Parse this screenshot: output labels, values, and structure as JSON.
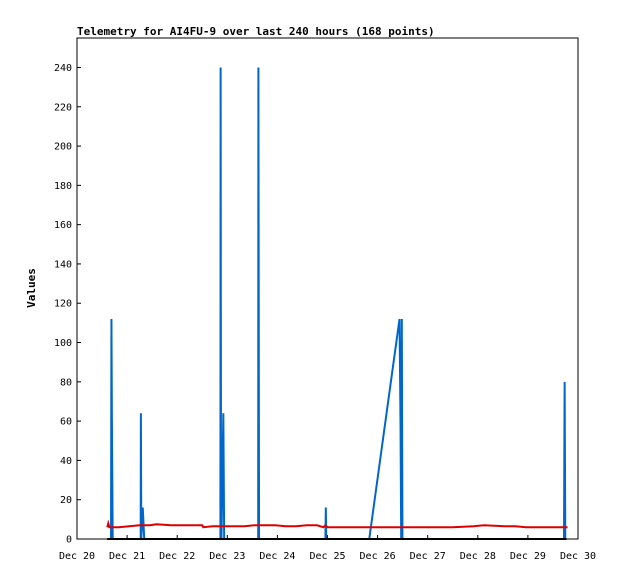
{
  "chart_data": {
    "type": "line",
    "title": "Telemetry for AI4FU-9 over last 240 hours (168 points)",
    "xlabel": "",
    "ylabel": "Values",
    "x_unit": "hours",
    "xlim": [
      0,
      240
    ],
    "ylim": [
      0,
      255
    ],
    "x_tick_labels": [
      "Dec 20",
      "Dec 21",
      "Dec 22",
      "Dec 23",
      "Dec 24",
      "Dec 25",
      "Dec 26",
      "Dec 27",
      "Dec 28",
      "Dec 29",
      "Dec 30"
    ],
    "y_ticks": [
      0,
      20,
      40,
      60,
      80,
      100,
      120,
      140,
      160,
      180,
      200,
      220,
      240
    ],
    "grid": false,
    "legend": "none",
    "series": [
      {
        "color": "#0066cc",
        "x": [
          14.5,
          14.6,
          16.3,
          16.5,
          16.7,
          17.1,
          17.5,
          30.5,
          30.6,
          30.8,
          31.5,
          32.2,
          32.4,
          33.0,
          33.3,
          33.5,
          33.6,
          33.8,
          34.0,
          34.5,
          35.0,
          35.1,
          68.7,
          68.8,
          68.9,
          69.0,
          69.2,
          70.1,
          70.3,
          70.5,
          71.4,
          71.6,
          71.8,
          71.9,
          72.3,
          72.4,
          72.5,
          86.7,
          86.8,
          86.9,
          87.0,
          87.2,
          87.3,
          87.5,
          87.6,
          87.8,
          88.0,
          88.3,
          88.6,
          89.2,
          119.0,
          119.2,
          119.4,
          119.5,
          120.0,
          140.0,
          154.5,
          155.0,
          155.3,
          155.6,
          155.9,
          156.0,
          156.3,
          156.5,
          156.7,
          156.9,
          157.1,
          233.3,
          233.5,
          233.6,
          233.9,
          234.2,
          234.5
        ],
        "values": [
          0,
          0,
          0,
          112,
          64,
          0,
          0,
          0,
          64,
          0,
          16,
          0,
          0,
          0,
          0,
          0,
          0,
          0,
          0,
          0,
          0,
          0,
          0,
          240,
          120,
          0,
          0,
          64,
          32,
          0,
          0,
          0,
          0,
          0,
          0,
          0,
          0,
          0,
          0,
          240,
          160,
          0,
          0,
          0,
          0,
          0,
          0,
          0,
          0,
          0,
          0,
          16,
          0,
          0,
          0,
          0,
          112,
          56,
          0,
          112,
          0,
          0,
          0,
          0,
          0,
          0,
          0,
          0,
          56,
          80,
          0,
          0,
          0
        ]
      },
      {
        "color": "#dd0000",
        "x": [
          14.5,
          15.0,
          15.5,
          16.0,
          20,
          25,
          30,
          35,
          38,
          45,
          50,
          55,
          60,
          60.5,
          65,
          70,
          75,
          80,
          85,
          90,
          95,
          100,
          105,
          110,
          115,
          118,
          119,
          120,
          125,
          130,
          135,
          140,
          145,
          150,
          155,
          160,
          162,
          170,
          180,
          190,
          195,
          205,
          210,
          215,
          220,
          225,
          230,
          235
        ],
        "values": [
          6,
          8,
          6,
          6,
          6,
          6.5,
          7,
          7,
          7.5,
          7,
          7,
          7,
          7,
          6,
          6.5,
          6.5,
          6.5,
          6.5,
          7,
          7,
          7,
          6.5,
          6.5,
          7,
          7,
          6,
          7,
          6,
          6,
          6,
          6,
          6,
          6,
          6,
          6,
          6,
          6,
          6,
          6,
          6.5,
          7,
          6.5,
          6.5,
          6,
          6,
          6,
          6,
          6
        ]
      },
      {
        "color": "#000000",
        "x": [
          14.5,
          234.5
        ],
        "values": [
          0,
          0
        ]
      }
    ]
  }
}
